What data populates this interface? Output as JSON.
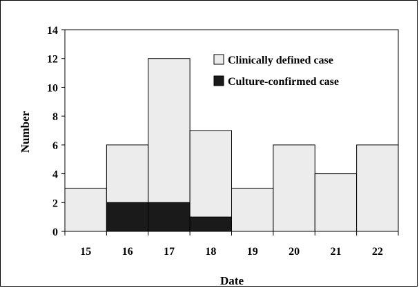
{
  "chart_data": {
    "type": "bar",
    "stacked": true,
    "title": "",
    "xlabel": "Date",
    "ylabel": "Number",
    "categories": [
      "15",
      "16",
      "17",
      "18",
      "19",
      "20",
      "21",
      "22"
    ],
    "series": [
      {
        "name": "Culture-confirmed case",
        "color": "#1a1a1a",
        "values": [
          0,
          2,
          2,
          1,
          0,
          0,
          0,
          0
        ]
      },
      {
        "name": "Clinically defined case",
        "color": "#ececec",
        "values": [
          3,
          4,
          10,
          6,
          3,
          6,
          4,
          6
        ]
      }
    ],
    "totals": [
      3,
      6,
      12,
      7,
      3,
      6,
      4,
      6
    ],
    "ylim": [
      0,
      14
    ],
    "yticks": [
      "0",
      "2",
      "4",
      "6",
      "8",
      "10",
      "12",
      "14"
    ],
    "grid": false,
    "legend_position": "top-right",
    "legend": [
      {
        "label": "Clinically defined case",
        "color": "#ececec"
      },
      {
        "label": "Culture-confirmed case",
        "color": "#1a1a1a"
      }
    ]
  }
}
